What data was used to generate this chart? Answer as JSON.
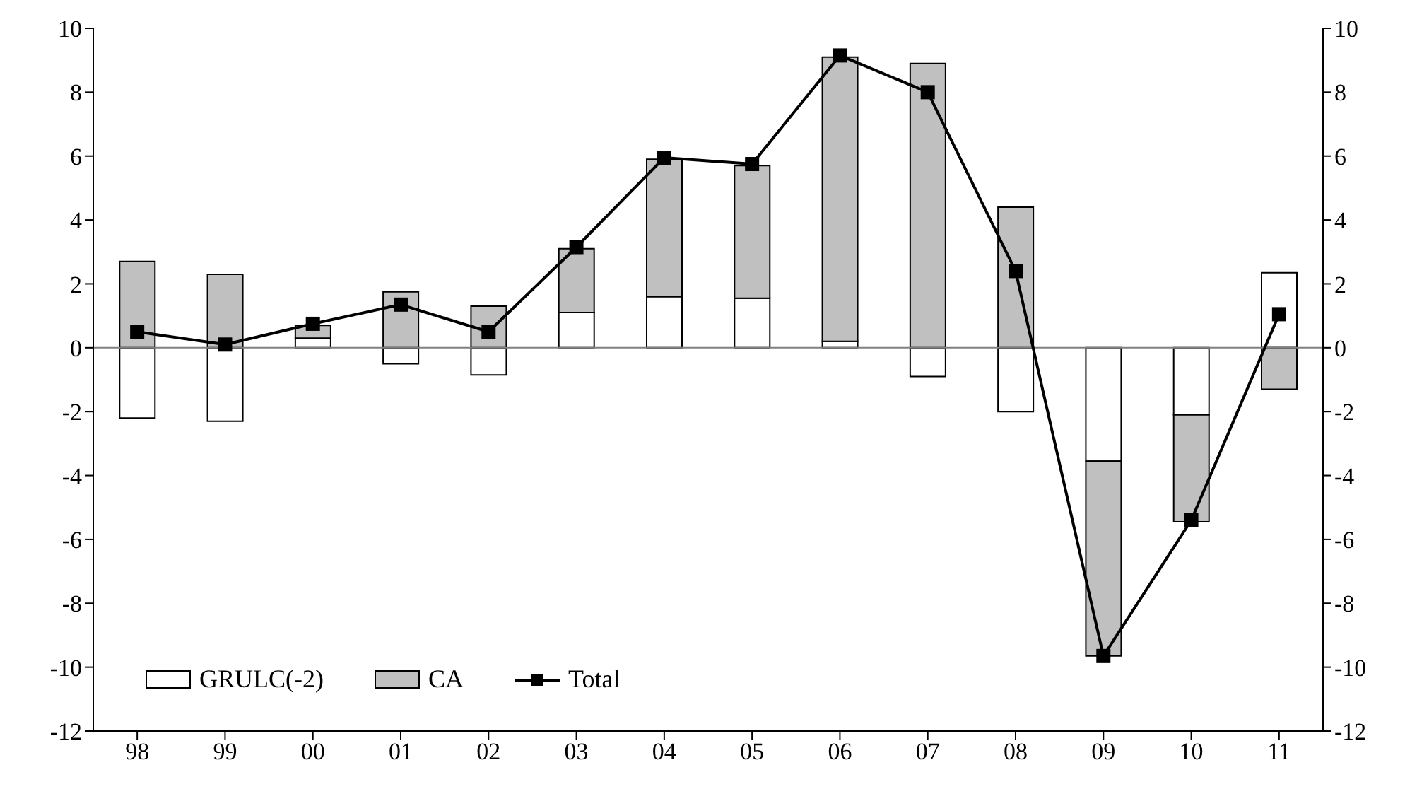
{
  "chart_data": {
    "type": "bar",
    "stacked": true,
    "categories": [
      "98",
      "99",
      "00",
      "01",
      "02",
      "03",
      "04",
      "05",
      "06",
      "07",
      "08",
      "09",
      "10",
      "11"
    ],
    "series": [
      {
        "name": "GRULC(-2)",
        "color": "#ffffff",
        "values": [
          -2.2,
          -2.3,
          0.3,
          -0.5,
          -0.85,
          1.1,
          1.6,
          1.55,
          0.2,
          -0.9,
          -2.0,
          -3.55,
          -2.1,
          2.35
        ]
      },
      {
        "name": "CA",
        "color": "#c0c0c0",
        "values": [
          2.7,
          2.3,
          0.4,
          1.75,
          1.3,
          2.0,
          4.3,
          4.15,
          8.9,
          8.9,
          4.4,
          -6.1,
          -3.35,
          -1.3
        ]
      },
      {
        "name": "Total",
        "type": "line",
        "color": "#000000",
        "marker": "square",
        "values": [
          0.5,
          0.1,
          0.75,
          1.35,
          0.5,
          3.15,
          5.95,
          5.75,
          9.15,
          8.0,
          2.4,
          -9.65,
          -5.4,
          1.05
        ]
      }
    ],
    "ylim": [
      -12,
      10
    ],
    "yticks": [
      -12,
      -10,
      -8,
      -6,
      -4,
      -2,
      0,
      2,
      4,
      6,
      8,
      10
    ],
    "y2lim": [
      -12,
      10
    ],
    "y2ticks": [
      -12,
      -10,
      -8,
      -6,
      -4,
      -2,
      0,
      2,
      4,
      6,
      8,
      10
    ],
    "ref_lines": [
      {
        "axis": "y",
        "value": 0,
        "color": "#808080"
      }
    ],
    "grid": false,
    "legend": "bottom left"
  }
}
